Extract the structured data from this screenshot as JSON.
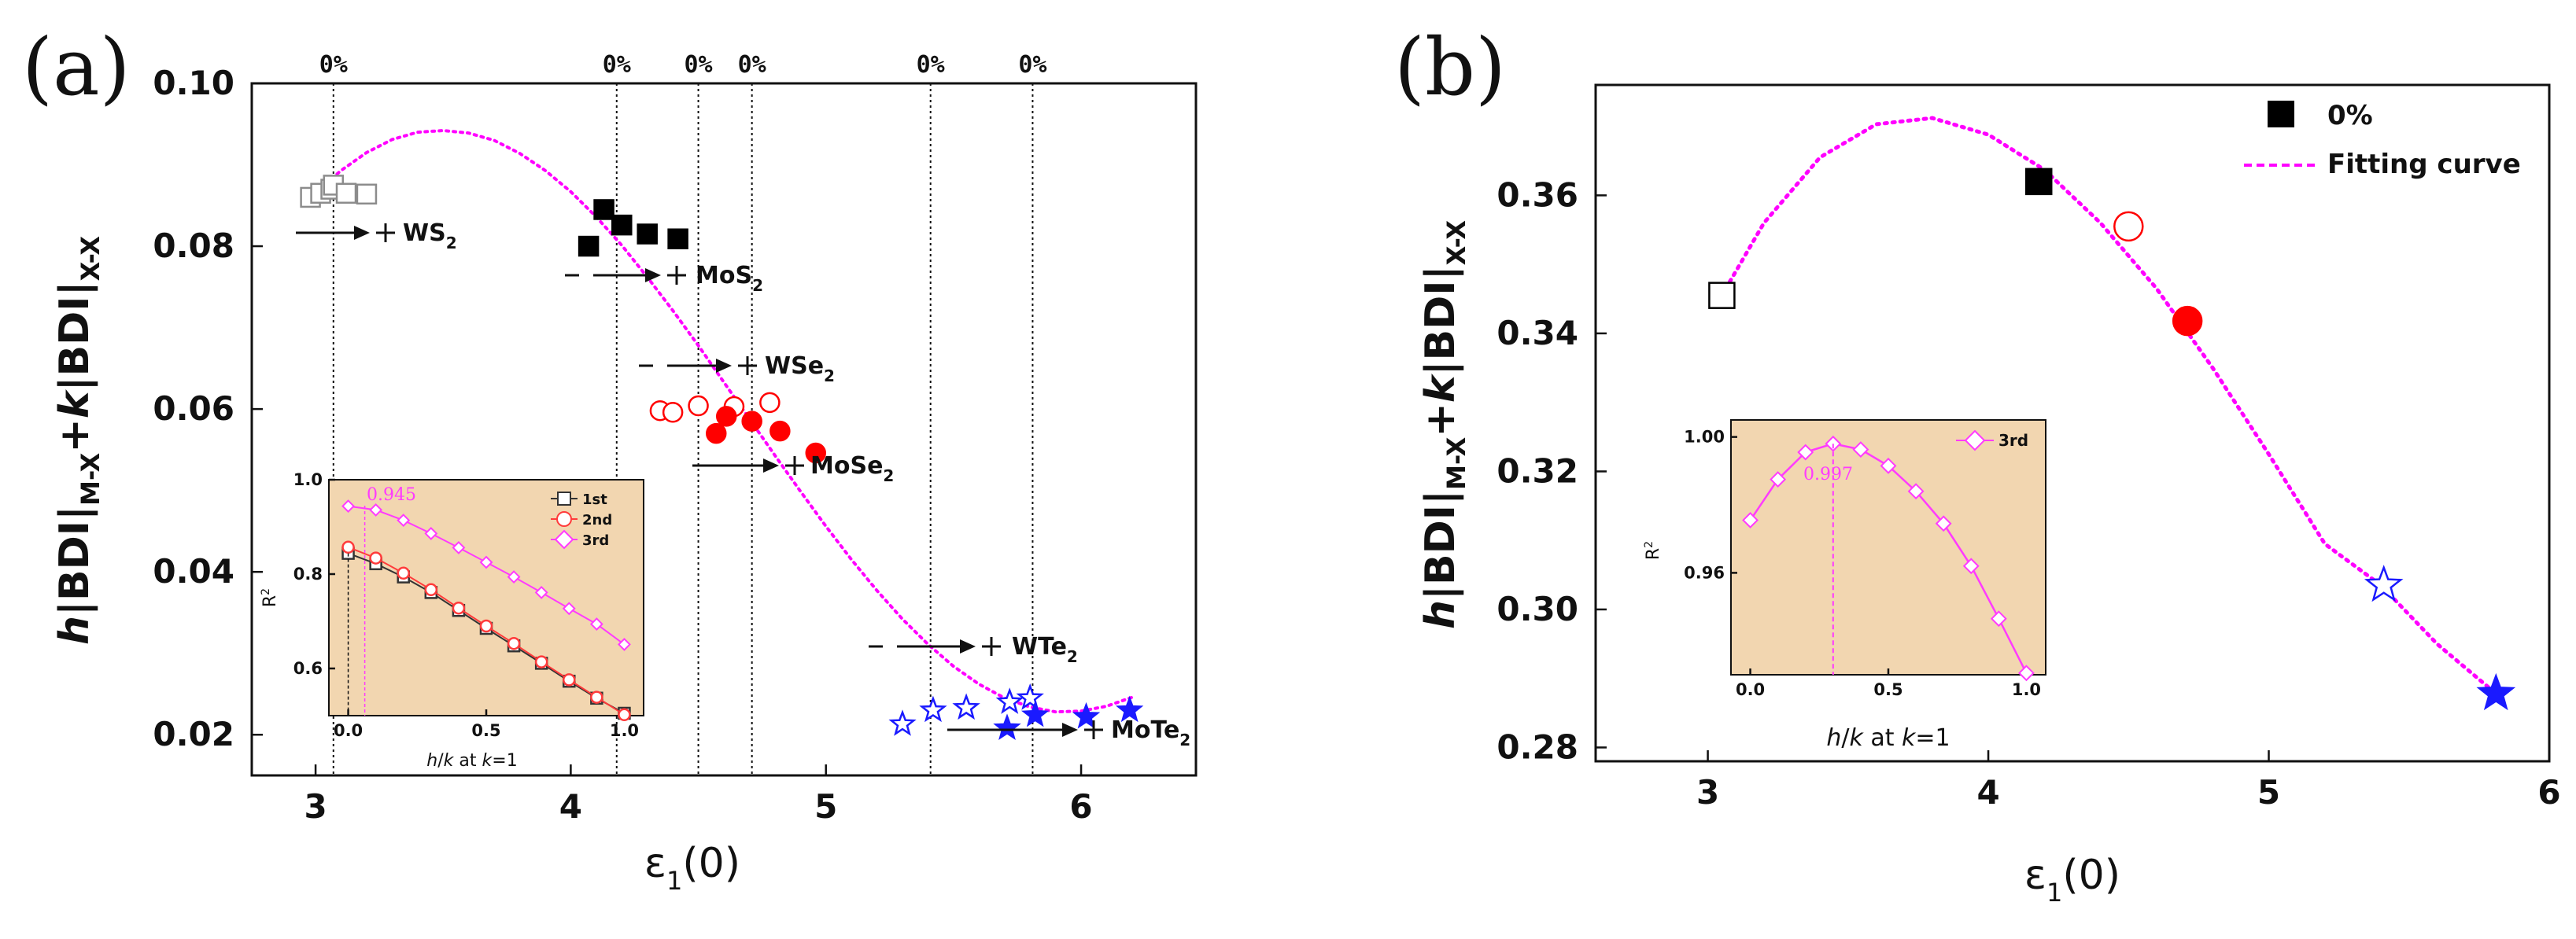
{
  "panels": {
    "a": {
      "label": "(a)",
      "ylabel": {
        "h": "h",
        "bdi1": "|BDI|",
        "sub1": "M-X",
        "plus": "+",
        "k": "k",
        "bdi2": "|BDI|",
        "sub2": "X-X"
      },
      "xlabel": {
        "eps": "ε",
        "sub": "1",
        "tail": "(0)"
      },
      "pct_label": "0%",
      "pct_x": [
        3.07,
        4.18,
        4.5,
        4.71,
        5.41,
        5.81
      ],
      "materials": [
        {
          "base": "WS",
          "sub": "2"
        },
        {
          "base": "MoS",
          "sub": "2"
        },
        {
          "base": "WSe",
          "sub": "2"
        },
        {
          "base": "MoSe",
          "sub": "2"
        },
        {
          "base": "WTe",
          "sub": "2"
        },
        {
          "base": "MoTe",
          "sub": "2"
        }
      ]
    },
    "b": {
      "label": "(b)",
      "ylabel": {
        "h": "h",
        "bdi1": "|BDI|",
        "sub1": "M-X",
        "plus": "+",
        "k": "k",
        "bdi2": "|BDI|",
        "sub2": "X-X"
      },
      "xlabel": {
        "eps": "ε",
        "sub": "1",
        "tail": "(0)"
      },
      "legend": [
        "0%",
        "Fitting curve"
      ]
    },
    "inset_a": {
      "ylabel": {
        "base": "R",
        "sup": "2"
      },
      "xlabel": {
        "h": "h",
        "mid": "/",
        "k": "k",
        "rest": " at ",
        "k2": "k",
        "eq": "=1"
      },
      "annotation": "0.945",
      "legend": [
        "1st",
        "2nd",
        "3rd"
      ]
    },
    "inset_b": {
      "ylabel": {
        "base": "R",
        "sup": "2"
      },
      "xlabel": {
        "h": "h",
        "mid": "/",
        "k": "k",
        "rest": " at ",
        "k2": "k",
        "eq": "=1"
      },
      "annotation": "0.997",
      "legend": [
        "3rd"
      ]
    }
  },
  "colors": {
    "fit": "#ff00ff",
    "black": "#000000",
    "gray": "#8c8c8c",
    "red": "#ff0000",
    "blue": "#1a1aff",
    "inset_bg": "#f2d6b0",
    "inset_black": "#333333",
    "inset_red": "#ff3b3b",
    "inset_pink": "#ff3bff"
  },
  "chart_data": [
    {
      "id": "a",
      "type": "scatter",
      "title": "(a)",
      "xlabel": "ε1(0)",
      "ylabel": "h|BDI|M-X + k|BDI|X-X",
      "xlim": [
        2.75,
        6.45
      ],
      "ylim": [
        0.015,
        0.1
      ],
      "xticks": [
        3,
        4,
        5,
        6
      ],
      "yticks": [
        0.02,
        0.04,
        0.06,
        0.08,
        0.1
      ],
      "ytick_labels": [
        "0.02",
        "0.04",
        "0.06",
        "0.08",
        "0.10"
      ],
      "series": [
        {
          "name": "WS2 strain (open)",
          "marker": "square",
          "fill": "open",
          "color": "gray",
          "x": [
            2.98,
            3.02,
            3.06,
            3.07,
            3.12,
            3.2
          ],
          "y": [
            0.086,
            0.0865,
            0.087,
            0.0875,
            0.0865,
            0.0864
          ]
        },
        {
          "name": "MoS2 strain (filled)",
          "marker": "square",
          "fill": "filled",
          "color": "black",
          "x": [
            4.07,
            4.13,
            4.2,
            4.3,
            4.42
          ],
          "y": [
            0.08,
            0.0845,
            0.0826,
            0.0815,
            0.0809
          ]
        },
        {
          "name": "WSe2 strain (open)",
          "marker": "circle",
          "fill": "open",
          "color": "red",
          "x": [
            4.35,
            4.4,
            4.5,
            4.64,
            4.78
          ],
          "y": [
            0.0598,
            0.0596,
            0.0604,
            0.0603,
            0.0608
          ]
        },
        {
          "name": "MoSe2 strain (filled)",
          "marker": "circle",
          "fill": "filled",
          "color": "red",
          "x": [
            4.57,
            4.61,
            4.71,
            4.82,
            4.96
          ],
          "y": [
            0.057,
            0.0591,
            0.0585,
            0.0573,
            0.0546
          ]
        },
        {
          "name": "WTe2 strain (open)",
          "marker": "star",
          "fill": "open",
          "color": "blue",
          "x": [
            5.3,
            5.42,
            5.55,
            5.72,
            5.8
          ],
          "y": [
            0.0213,
            0.023,
            0.0233,
            0.024,
            0.0245
          ]
        },
        {
          "name": "MoTe2 strain (filled)",
          "marker": "star",
          "fill": "filled",
          "color": "blue",
          "x": [
            5.71,
            5.82,
            6.02,
            6.19
          ],
          "y": [
            0.0208,
            0.0224,
            0.0222,
            0.023
          ]
        },
        {
          "name": "Fitting curve",
          "type": "line",
          "style": "dotted",
          "color": "fit",
          "x": [
            3.0,
            3.1,
            3.2,
            3.3,
            3.4,
            3.5,
            3.6,
            3.7,
            3.8,
            3.9,
            4.0,
            4.1,
            4.2,
            4.3,
            4.4,
            4.5,
            4.6,
            4.7,
            4.8,
            4.9,
            5.0,
            5.1,
            5.2,
            5.3,
            5.4,
            5.5,
            5.6,
            5.7,
            5.8,
            5.9,
            6.0,
            6.1,
            6.2
          ],
          "y": [
            0.0866,
            0.0893,
            0.0915,
            0.0931,
            0.094,
            0.0942,
            0.0939,
            0.093,
            0.0914,
            0.0893,
            0.0867,
            0.0836,
            0.0801,
            0.0762,
            0.0721,
            0.0678,
            0.0633,
            0.0588,
            0.0543,
            0.0499,
            0.0456,
            0.0415,
            0.0377,
            0.0342,
            0.0311,
            0.0284,
            0.0262,
            0.0245,
            0.0234,
            0.0228,
            0.0229,
            0.0235,
            0.0246
          ]
        }
      ],
      "percent_lines_x": [
        3.07,
        4.18,
        4.5,
        4.71,
        5.41,
        5.81
      ],
      "annotations": [
        "0%",
        "WS2",
        "MoS2",
        "WSe2",
        "MoSe2",
        "WTe2",
        "MoTe2"
      ]
    },
    {
      "id": "inset-a",
      "type": "line",
      "xlabel": "h/k at k=1",
      "ylabel": "R2",
      "xlim": [
        -0.07,
        1.07
      ],
      "ylim": [
        0.5,
        1.0
      ],
      "xticks": [
        0.0,
        0.5,
        1.0
      ],
      "yticks": [
        0.6,
        0.8,
        1.0
      ],
      "ytick_labels": [
        "0.6",
        "0.8",
        "1.0"
      ],
      "x": [
        0.0,
        0.1,
        0.2,
        0.3,
        0.4,
        0.5,
        0.6,
        0.7,
        0.8,
        0.9,
        1.0
      ],
      "series": [
        {
          "name": "1st",
          "marker": "square",
          "color": "inset_black",
          "values": [
            0.844,
            0.822,
            0.794,
            0.761,
            0.723,
            0.685,
            0.648,
            0.611,
            0.573,
            0.537,
            0.505
          ]
        },
        {
          "name": "2nd",
          "marker": "circle",
          "color": "inset_red",
          "values": [
            0.857,
            0.834,
            0.802,
            0.767,
            0.728,
            0.69,
            0.653,
            0.614,
            0.576,
            0.539,
            0.502
          ]
        },
        {
          "name": "3rd",
          "marker": "diamond",
          "color": "inset_pink",
          "values": [
            0.944,
            0.936,
            0.914,
            0.886,
            0.856,
            0.825,
            0.794,
            0.761,
            0.727,
            0.694,
            0.651
          ]
        }
      ],
      "annotation": {
        "text": "0.945",
        "x": 0.06,
        "y": 0.945
      }
    },
    {
      "id": "b",
      "type": "scatter",
      "title": "(b)",
      "xlabel": "ε1(0)",
      "ylabel": "h|BDI|M-X + k|BDI|X-X",
      "xlim": [
        2.6,
        6.0
      ],
      "ylim": [
        0.278,
        0.376
      ],
      "xticks": [
        3,
        4,
        5,
        6
      ],
      "yticks": [
        0.28,
        0.3,
        0.32,
        0.34,
        0.36
      ],
      "ytick_labels": [
        "0.28",
        "0.30",
        "0.32",
        "0.34",
        "0.36"
      ],
      "series": [
        {
          "name": "WS2",
          "marker": "square",
          "fill": "open",
          "color": "black",
          "x": [
            3.05
          ],
          "y": [
            0.3455
          ]
        },
        {
          "name": "MoS2",
          "marker": "square",
          "fill": "filled",
          "color": "black",
          "x": [
            4.18
          ],
          "y": [
            0.362
          ]
        },
        {
          "name": "WSe2",
          "marker": "circle",
          "fill": "open",
          "color": "red",
          "x": [
            4.5
          ],
          "y": [
            0.3555
          ]
        },
        {
          "name": "MoSe2",
          "marker": "circle",
          "fill": "filled",
          "color": "red",
          "x": [
            4.71
          ],
          "y": [
            0.3418
          ]
        },
        {
          "name": "WTe2",
          "marker": "star",
          "fill": "open",
          "color": "blue",
          "x": [
            5.41
          ],
          "y": [
            0.3035
          ]
        },
        {
          "name": "MoTe2",
          "marker": "star",
          "fill": "filled",
          "color": "blue",
          "x": [
            5.81
          ],
          "y": [
            0.2878
          ]
        },
        {
          "name": "Fitting curve",
          "type": "line",
          "style": "dotted",
          "color": "fit",
          "x": [
            3.05,
            3.2,
            3.4,
            3.6,
            3.8,
            4.0,
            4.2,
            4.4,
            4.6,
            4.8,
            5.0,
            5.2,
            5.4,
            5.6,
            5.81
          ],
          "y": [
            0.3455,
            0.356,
            0.3655,
            0.3703,
            0.3712,
            0.3688,
            0.3637,
            0.356,
            0.3465,
            0.335,
            0.3225,
            0.3095,
            0.3035,
            0.295,
            0.2878
          ]
        }
      ],
      "legend_position": "top-right"
    },
    {
      "id": "inset-b",
      "type": "line",
      "xlabel": "h/k at k=1",
      "ylabel": "R2",
      "xlim": [
        -0.07,
        1.07
      ],
      "ylim": [
        0.93,
        1.005
      ],
      "xticks": [
        0.0,
        0.5,
        1.0
      ],
      "yticks": [
        0.96,
        1.0
      ],
      "ytick_labels": [
        "0.96",
        "1.00"
      ],
      "x": [
        0.0,
        0.1,
        0.2,
        0.3,
        0.4,
        0.5,
        0.6,
        0.7,
        0.8,
        0.9,
        1.0
      ],
      "series": [
        {
          "name": "3rd",
          "marker": "diamond",
          "color": "inset_pink",
          "values": [
            0.9755,
            0.9875,
            0.9955,
            0.998,
            0.9963,
            0.9915,
            0.984,
            0.9745,
            0.962,
            0.9465,
            0.9305
          ]
        }
      ],
      "annotation": {
        "text": "0.997",
        "x": 0.3,
        "y": 0.998
      }
    }
  ]
}
